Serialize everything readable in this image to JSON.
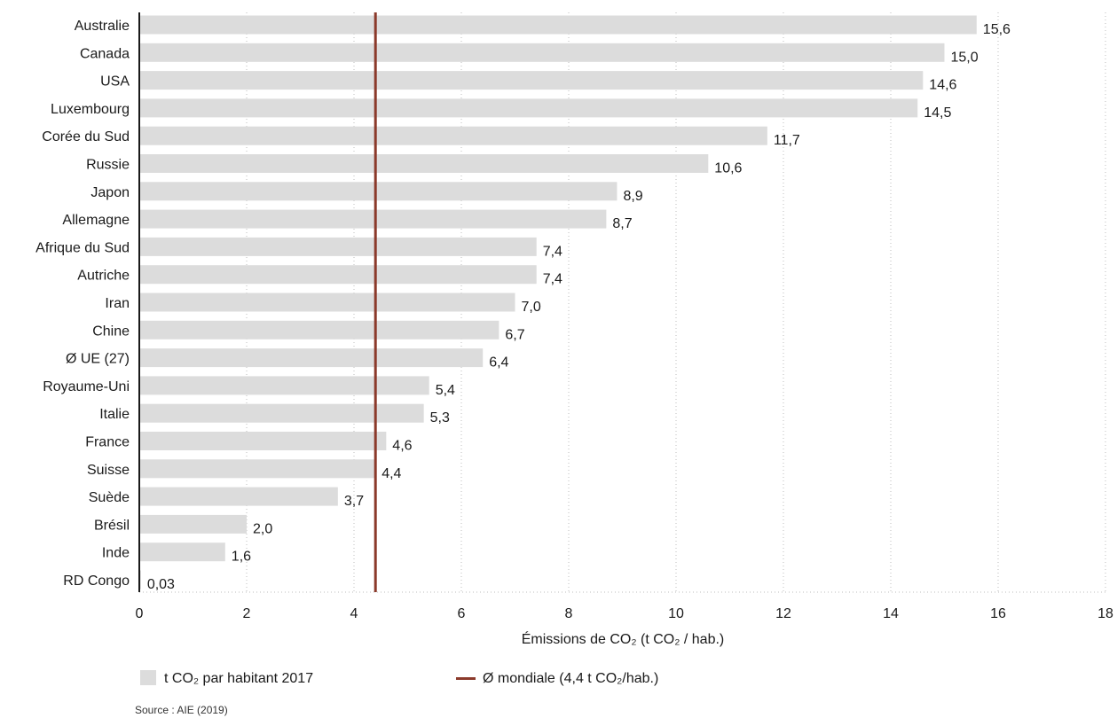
{
  "chart_data": {
    "type": "bar",
    "orientation": "horizontal",
    "categories": [
      "Australie",
      "Canada",
      "USA",
      "Luxembourg",
      "Corée du Sud",
      "Russie",
      "Japon",
      "Allemagne",
      "Afrique du Sud",
      "Autriche",
      "Iran",
      "Chine",
      "Ø UE (27)",
      "Royaume-Uni",
      "Italie",
      "France",
      "Suisse",
      "Suède",
      "Brésil",
      "Inde",
      "RD Congo"
    ],
    "values": [
      15.6,
      15.0,
      14.6,
      14.5,
      11.7,
      10.6,
      8.9,
      8.7,
      7.4,
      7.4,
      7.0,
      6.7,
      6.4,
      5.4,
      5.3,
      4.6,
      4.4,
      3.7,
      2.0,
      1.6,
      0.03
    ],
    "value_labels": [
      "15,6",
      "15,0",
      "14,6",
      "14,5",
      "11,7",
      "10,6",
      "8,9",
      "8,7",
      "7,4",
      "7,4",
      "7,0",
      "6,7",
      "6,4",
      "5,4",
      "5,3",
      "4,6",
      "4,4",
      "3,7",
      "2,0",
      "1,6",
      "0,03"
    ],
    "xlim": [
      0,
      18
    ],
    "x_ticks": [
      0,
      2,
      4,
      6,
      8,
      10,
      12,
      14,
      16,
      18
    ],
    "xlabel": "Émissions de CO₂ (t CO₂ / hab.)",
    "ylabel": "",
    "grid": "vertical dotted",
    "series_name": "t CO₂ par habitant 2017",
    "reference_line": {
      "value": 4.4,
      "label": "Ø mondiale (4,4 t CO₂/hab.)"
    },
    "legend_position": "bottom"
  },
  "colors": {
    "bar": "#dcdcdc",
    "reference_line": "#8b3a2b",
    "grid": "#bdbdbd",
    "axis": "#1a1a1a"
  },
  "source": "Source : AIE (2019)"
}
